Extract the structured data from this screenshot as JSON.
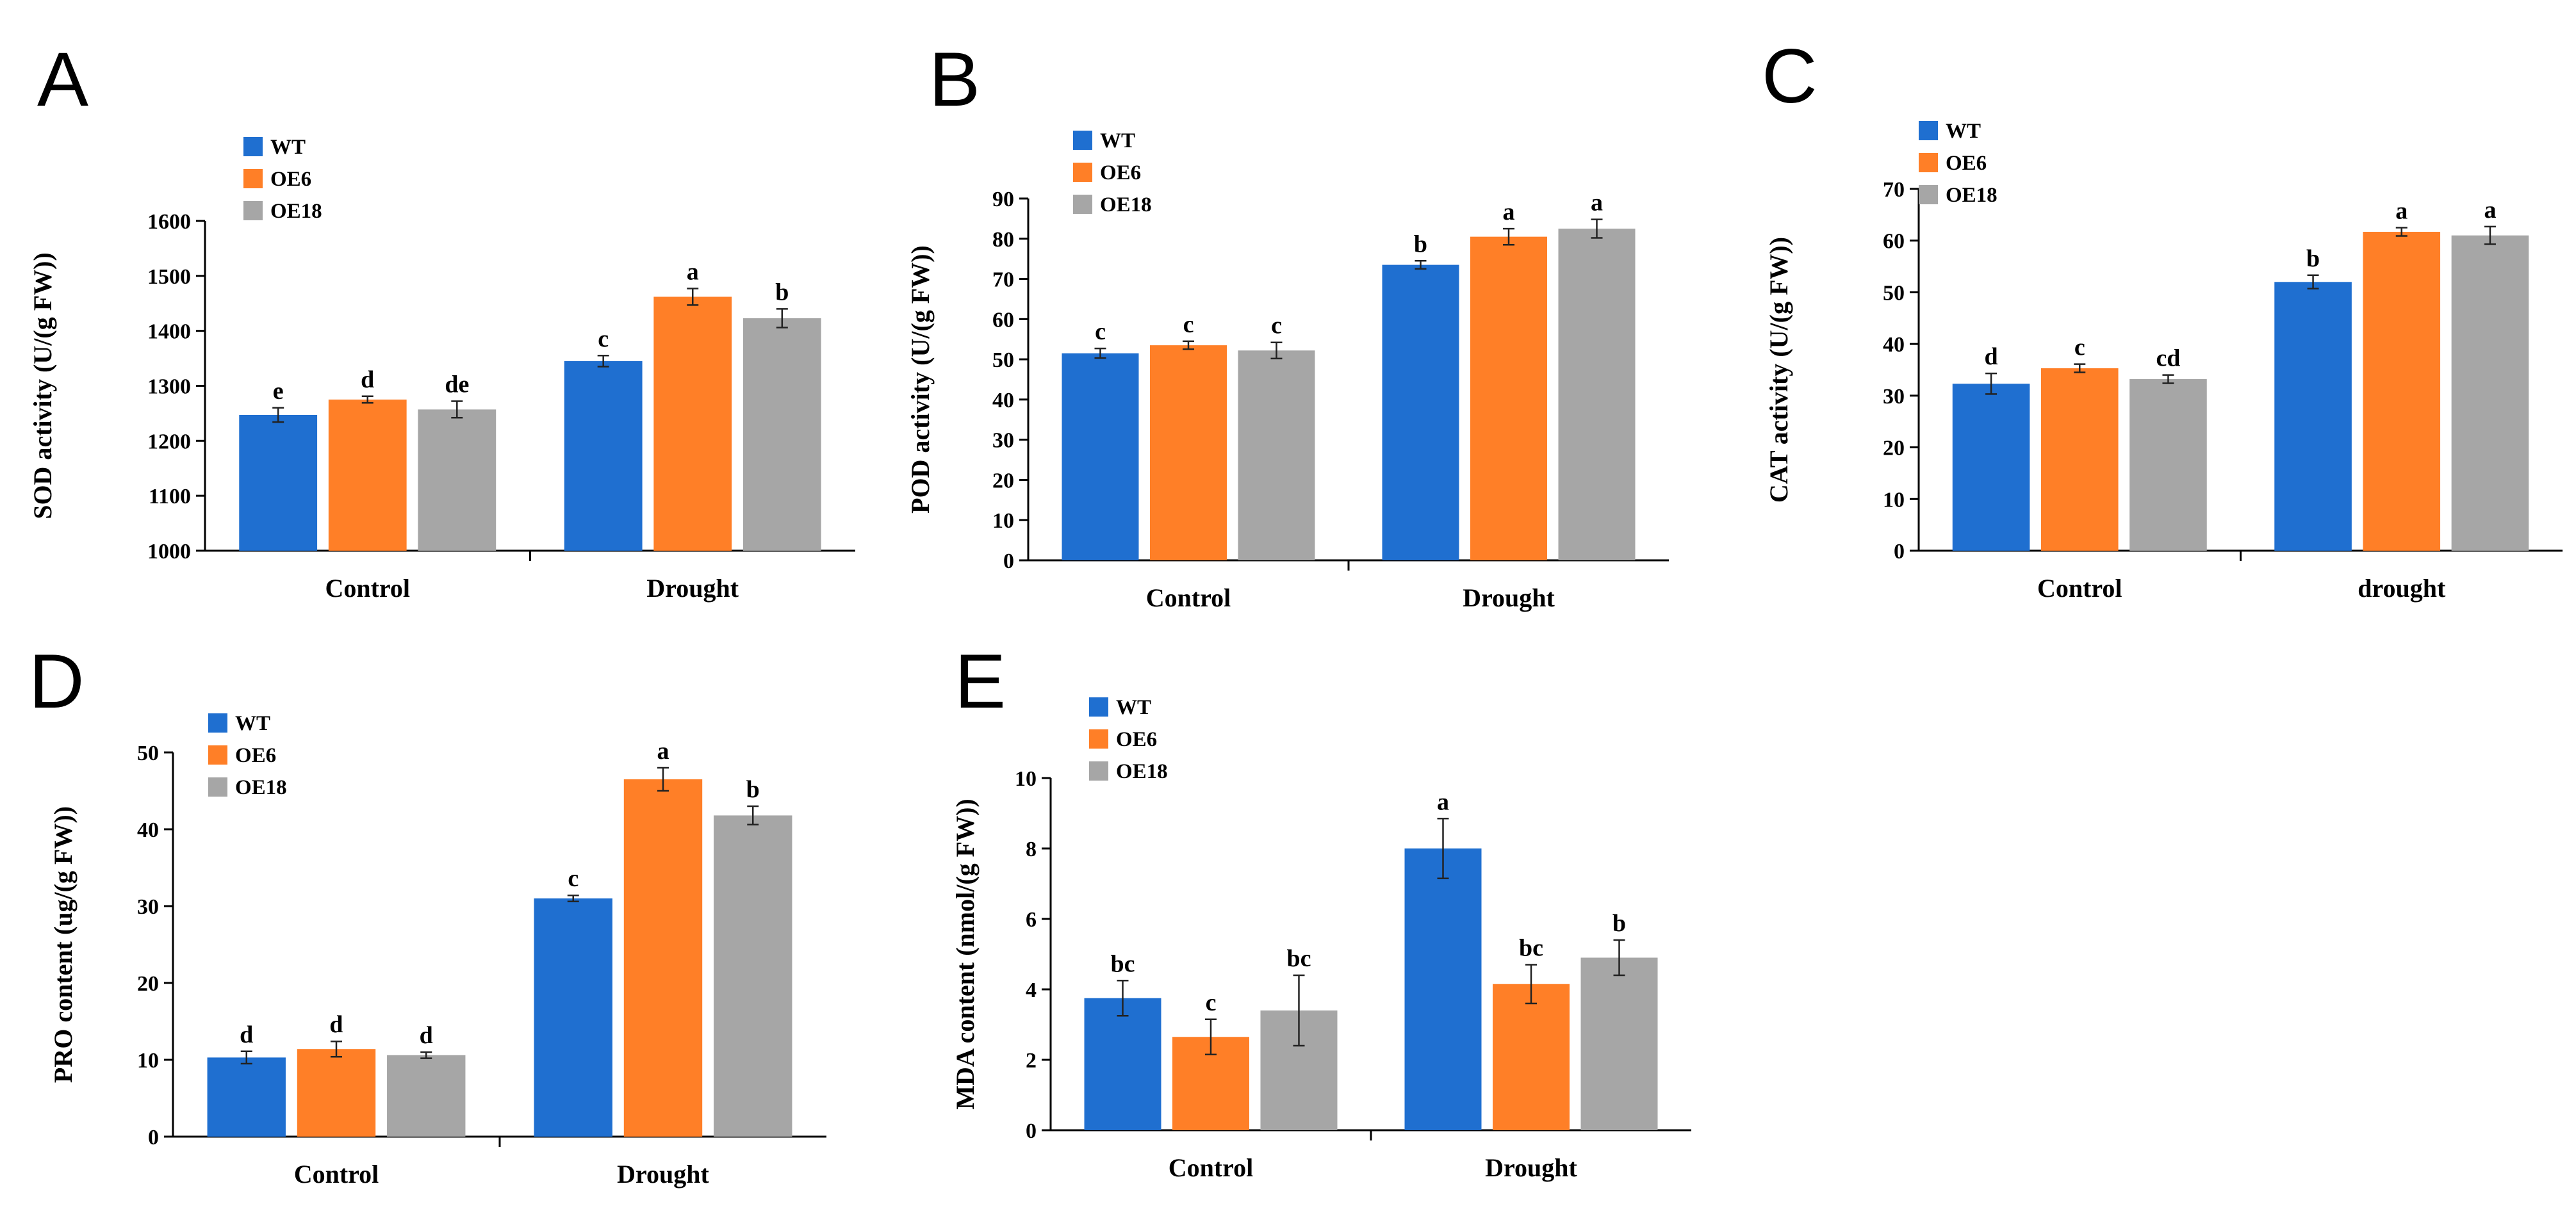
{
  "colors": {
    "WT": "#1f6fd0",
    "OE6": "#ff7f27",
    "OE18": "#a6a6a6"
  },
  "chart_data": [
    {
      "panel": "A",
      "type": "bar",
      "ylabel": "SOD activity (U/(g FW))",
      "categories": [
        "Control",
        "Drought"
      ],
      "ylim": [
        1000,
        1600
      ],
      "yticks": [
        1000,
        1100,
        1200,
        1300,
        1400,
        1500,
        1600
      ],
      "series": [
        {
          "name": "WT",
          "values": [
            1247,
            1345
          ],
          "errors": [
            13,
            10
          ],
          "letters": [
            "e",
            "c"
          ]
        },
        {
          "name": "OE6",
          "values": [
            1275,
            1462
          ],
          "errors": [
            6,
            15
          ],
          "letters": [
            "d",
            "a"
          ]
        },
        {
          "name": "OE18",
          "values": [
            1257,
            1423
          ],
          "errors": [
            15,
            17
          ],
          "letters": [
            "de",
            "b"
          ]
        }
      ]
    },
    {
      "panel": "B",
      "type": "bar",
      "ylabel": "POD activity (U/(g FW))",
      "categories": [
        "Control",
        "Drought"
      ],
      "ylim": [
        0,
        90
      ],
      "yticks": [
        0,
        10,
        20,
        30,
        40,
        50,
        60,
        70,
        80,
        90
      ],
      "series": [
        {
          "name": "WT",
          "values": [
            51.5,
            73.5
          ],
          "errors": [
            1.2,
            1.0
          ],
          "letters": [
            "c",
            "b"
          ]
        },
        {
          "name": "OE6",
          "values": [
            53.5,
            80.5
          ],
          "errors": [
            1.0,
            2.0
          ],
          "letters": [
            "c",
            "a"
          ]
        },
        {
          "name": "OE18",
          "values": [
            52.2,
            82.5
          ],
          "errors": [
            2.0,
            2.3
          ],
          "letters": [
            "c",
            "a"
          ]
        }
      ]
    },
    {
      "panel": "C",
      "type": "bar",
      "ylabel": "CAT activity (U/(g FW))",
      "categories": [
        "Control",
        "drought"
      ],
      "ylim": [
        0,
        70
      ],
      "yticks": [
        0,
        10,
        20,
        30,
        40,
        50,
        60,
        70
      ],
      "series": [
        {
          "name": "WT",
          "values": [
            32.3,
            52.0
          ],
          "errors": [
            2.0,
            1.3
          ],
          "letters": [
            "d",
            "b"
          ]
        },
        {
          "name": "OE6",
          "values": [
            35.3,
            61.7
          ],
          "errors": [
            0.8,
            0.8
          ],
          "letters": [
            "c",
            "a"
          ]
        },
        {
          "name": "OE18",
          "values": [
            33.2,
            61.0
          ],
          "errors": [
            0.8,
            1.7
          ],
          "letters": [
            "cd",
            "a"
          ]
        }
      ]
    },
    {
      "panel": "D",
      "type": "bar",
      "ylabel": "PRO content (ug/(g FW))",
      "categories": [
        "Control",
        "Drought"
      ],
      "ylim": [
        0,
        50
      ],
      "yticks": [
        0,
        10,
        20,
        30,
        40,
        50
      ],
      "series": [
        {
          "name": "WT",
          "values": [
            10.3,
            31.0
          ],
          "errors": [
            0.8,
            0.4
          ],
          "letters": [
            "d",
            "c"
          ]
        },
        {
          "name": "OE6",
          "values": [
            11.4,
            46.5
          ],
          "errors": [
            1.0,
            1.5
          ],
          "letters": [
            "d",
            "a"
          ]
        },
        {
          "name": "OE18",
          "values": [
            10.6,
            41.8
          ],
          "errors": [
            0.4,
            1.2
          ],
          "letters": [
            "d",
            "b"
          ]
        }
      ]
    },
    {
      "panel": "E",
      "type": "bar",
      "ylabel": "MDA content (nmol/(g FW))",
      "categories": [
        "Control",
        "Drought"
      ],
      "ylim": [
        0,
        10
      ],
      "yticks": [
        0,
        2,
        4,
        6,
        8,
        10
      ],
      "series": [
        {
          "name": "WT",
          "values": [
            3.75,
            8.0
          ],
          "errors": [
            0.5,
            0.85
          ],
          "letters": [
            "bc",
            "a"
          ]
        },
        {
          "name": "OE6",
          "values": [
            2.65,
            4.15
          ],
          "errors": [
            0.5,
            0.55
          ],
          "letters": [
            "c",
            "bc"
          ]
        },
        {
          "name": "OE18",
          "values": [
            3.4,
            4.9
          ],
          "errors": [
            1.0,
            0.5
          ],
          "letters": [
            "bc",
            "b"
          ]
        }
      ]
    }
  ]
}
